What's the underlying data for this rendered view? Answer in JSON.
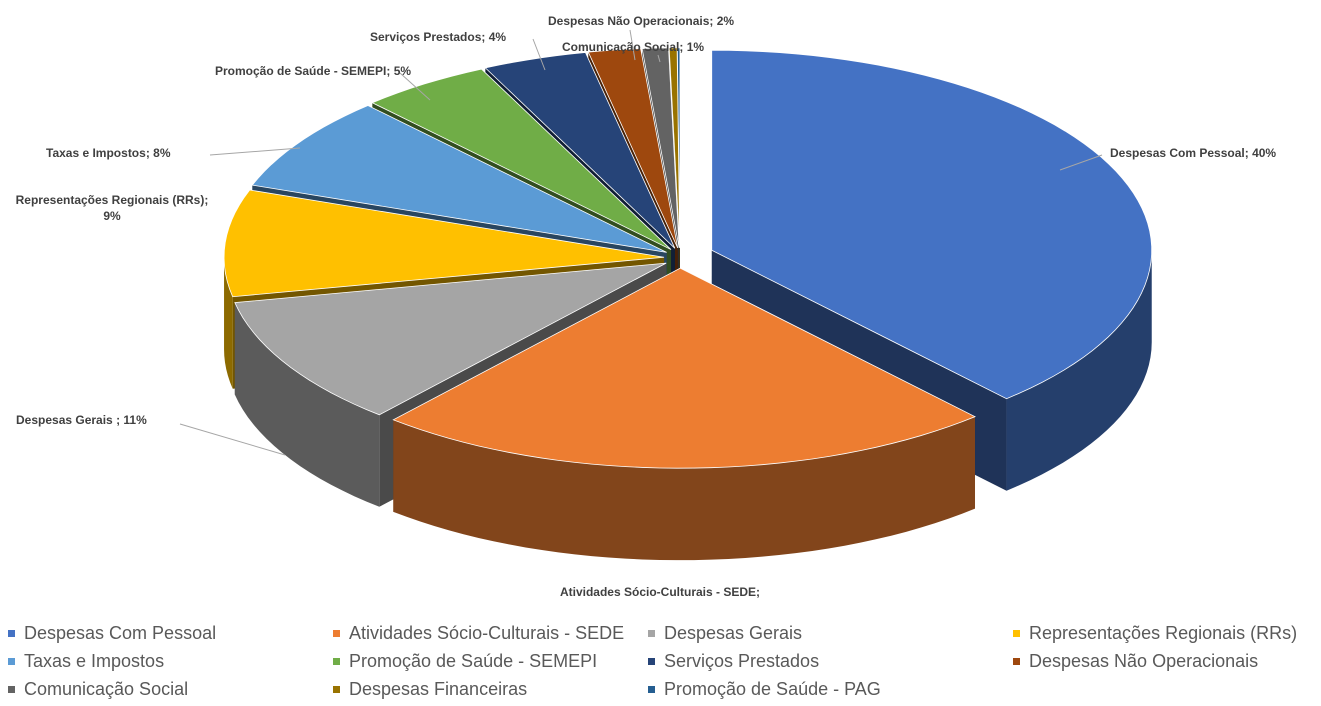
{
  "chart_data": {
    "type": "pie",
    "three_d": true,
    "exploded": true,
    "legend_position": "bottom",
    "slices": [
      {
        "name": "Despesas  Com Pessoal",
        "value": 40,
        "color": "#4472c4",
        "label_text": "Despesas  Com Pessoal; 40%"
      },
      {
        "name": "Atividades Sócio-Culturais - SEDE",
        "value": 24,
        "color": "#ed7d31",
        "label_text": "Atividades Sócio-Culturais - SEDE;"
      },
      {
        "name": "Despesas Gerais",
        "value": 11,
        "color": "#a5a5a5",
        "label_text": "Despesas Gerais ; 11%"
      },
      {
        "name": "Representações Regionais (RRs)",
        "value": 9,
        "color": "#ffc000",
        "label_text": "Representações Regionais (RRs); 9%"
      },
      {
        "name": "Taxas e Impostos",
        "value": 8,
        "color": "#5b9bd5",
        "label_text": "Taxas e Impostos; 8%"
      },
      {
        "name": "Promoção de Saúde - SEMEPI",
        "value": 5,
        "color": "#70ad47",
        "label_text": "Promoção de Saúde - SEMEPI; 5%"
      },
      {
        "name": "Serviços Prestados",
        "value": 4,
        "color": "#264478",
        "label_text": "Serviços Prestados; 4%"
      },
      {
        "name": "Despesas Não Operacionais",
        "value": 2,
        "color": "#9e480e",
        "label_text": "Despesas Não Operacionais; 2%"
      },
      {
        "name": "Comunicação Social",
        "value": 1,
        "color": "#636363",
        "label_text": "Comunicação Social; 1%"
      },
      {
        "name": "Despesas Financeiras",
        "value": 0.3,
        "color": "#997300",
        "label_text": ""
      },
      {
        "name": "Promoção de Saúde - PAG",
        "value": 0.1,
        "color": "#255e91",
        "label_text": ""
      }
    ]
  }
}
